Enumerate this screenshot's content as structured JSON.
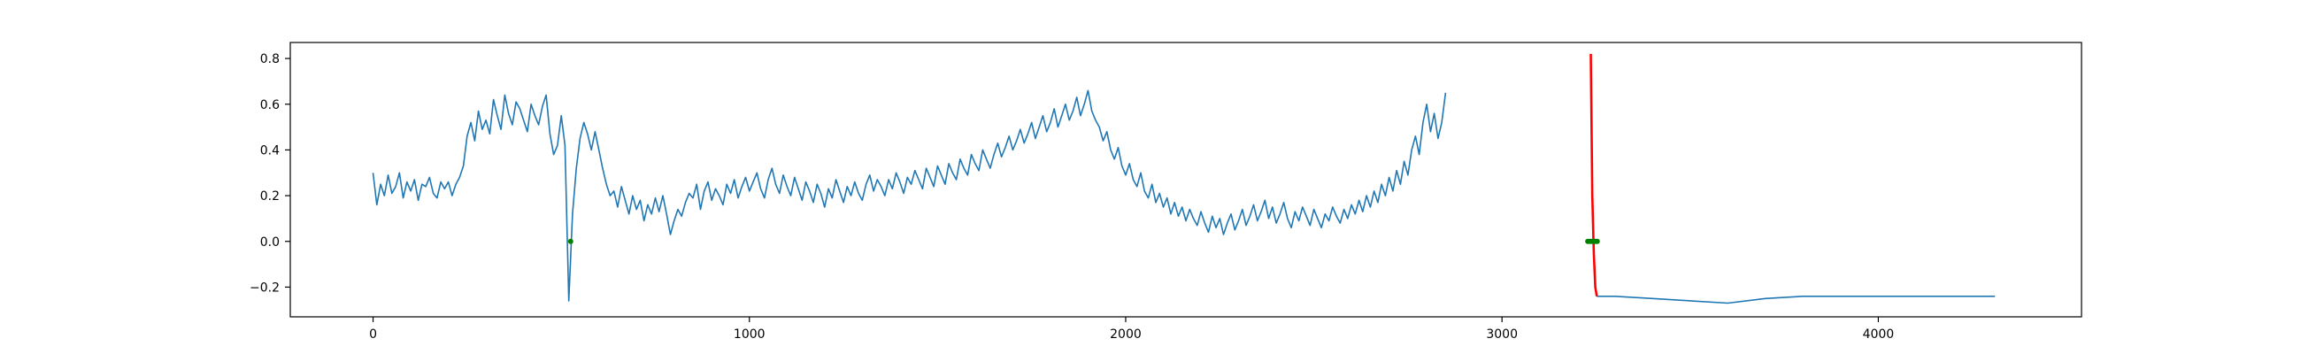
{
  "chart_data": {
    "type": "line",
    "title": "",
    "xlabel": "",
    "ylabel": "",
    "xlim": [
      -220,
      4540
    ],
    "ylim": [
      -0.33,
      0.87
    ],
    "x_ticks": [
      0,
      1000,
      2000,
      3000,
      4000
    ],
    "x_tick_labels": [
      "0",
      "1000",
      "2000",
      "3000",
      "4000"
    ],
    "y_ticks": [
      -0.2,
      0.0,
      0.2,
      0.4,
      0.6,
      0.8
    ],
    "y_tick_labels": [
      "−0.2",
      "0.0",
      "0.2",
      "0.4",
      "0.6",
      "0.8"
    ],
    "grid": false,
    "legend": "none",
    "series": [
      {
        "color": "#1f77b4",
        "sampling_step": 10,
        "x_start": 0,
        "values": [
          0.3,
          0.16,
          0.25,
          0.2,
          0.29,
          0.21,
          0.24,
          0.3,
          0.19,
          0.26,
          0.22,
          0.27,
          0.18,
          0.25,
          0.24,
          0.28,
          0.21,
          0.19,
          0.26,
          0.23,
          0.26,
          0.2,
          0.25,
          0.28,
          0.33,
          0.46,
          0.52,
          0.44,
          0.57,
          0.49,
          0.53,
          0.47,
          0.62,
          0.55,
          0.49,
          0.64,
          0.56,
          0.51,
          0.61,
          0.58,
          0.53,
          0.48,
          0.6,
          0.55,
          0.51,
          0.59,
          0.64,
          0.47,
          0.38,
          0.42,
          0.55,
          0.42,
          -0.26,
          0.12,
          0.32,
          0.45,
          0.52,
          0.47,
          0.4,
          0.48,
          0.4,
          0.32,
          0.25,
          0.2,
          0.22,
          0.15,
          0.24,
          0.18,
          0.12,
          0.2,
          0.14,
          0.18,
          0.09,
          0.16,
          0.12,
          0.19,
          0.13,
          0.2,
          0.12,
          0.03,
          0.09,
          0.14,
          0.11,
          0.17,
          0.21,
          0.19,
          0.25,
          0.14,
          0.22,
          0.26,
          0.18,
          0.23,
          0.2,
          0.16,
          0.25,
          0.21,
          0.27,
          0.19,
          0.24,
          0.28,
          0.22,
          0.26,
          0.3,
          0.23,
          0.19,
          0.27,
          0.32,
          0.25,
          0.21,
          0.29,
          0.24,
          0.2,
          0.28,
          0.23,
          0.18,
          0.26,
          0.22,
          0.17,
          0.25,
          0.21,
          0.15,
          0.23,
          0.19,
          0.27,
          0.22,
          0.17,
          0.24,
          0.2,
          0.26,
          0.21,
          0.18,
          0.25,
          0.29,
          0.22,
          0.27,
          0.24,
          0.2,
          0.27,
          0.23,
          0.3,
          0.26,
          0.21,
          0.28,
          0.25,
          0.31,
          0.27,
          0.23,
          0.32,
          0.28,
          0.24,
          0.33,
          0.29,
          0.25,
          0.34,
          0.3,
          0.27,
          0.36,
          0.32,
          0.29,
          0.38,
          0.34,
          0.31,
          0.4,
          0.36,
          0.32,
          0.38,
          0.43,
          0.37,
          0.41,
          0.46,
          0.4,
          0.44,
          0.49,
          0.43,
          0.47,
          0.52,
          0.45,
          0.5,
          0.55,
          0.48,
          0.52,
          0.58,
          0.5,
          0.55,
          0.6,
          0.53,
          0.57,
          0.63,
          0.55,
          0.6,
          0.66,
          0.57,
          0.53,
          0.5,
          0.44,
          0.48,
          0.4,
          0.36,
          0.41,
          0.33,
          0.29,
          0.34,
          0.27,
          0.24,
          0.3,
          0.22,
          0.19,
          0.25,
          0.17,
          0.21,
          0.15,
          0.19,
          0.12,
          0.17,
          0.11,
          0.15,
          0.09,
          0.14,
          0.1,
          0.07,
          0.13,
          0.08,
          0.04,
          0.11,
          0.06,
          0.1,
          0.03,
          0.08,
          0.12,
          0.05,
          0.09,
          0.14,
          0.07,
          0.11,
          0.16,
          0.09,
          0.13,
          0.18,
          0.1,
          0.15,
          0.08,
          0.12,
          0.17,
          0.1,
          0.06,
          0.13,
          0.09,
          0.15,
          0.11,
          0.07,
          0.14,
          0.1,
          0.06,
          0.12,
          0.09,
          0.15,
          0.11,
          0.08,
          0.14,
          0.1,
          0.16,
          0.12,
          0.18,
          0.13,
          0.2,
          0.15,
          0.22,
          0.17,
          0.25,
          0.2,
          0.28,
          0.22,
          0.31,
          0.25,
          0.35,
          0.29,
          0.4,
          0.46,
          0.38,
          0.52,
          0.6,
          0.48,
          0.56,
          0.45,
          0.52,
          0.65
        ]
      },
      {
        "color": "#1f77b4",
        "x": [
          3252,
          3300,
          3400,
          3500,
          3600,
          3700,
          3800,
          3900,
          4000,
          4100,
          4200,
          4310
        ],
        "values": [
          -0.24,
          -0.24,
          -0.25,
          -0.26,
          -0.27,
          -0.25,
          -0.24,
          -0.24,
          -0.24,
          -0.24,
          -0.24,
          -0.24
        ]
      },
      {
        "color": "#ff0000",
        "x": [
          3236,
          3240,
          3244,
          3248,
          3252
        ],
        "values": [
          0.82,
          0.2,
          -0.05,
          -0.2,
          -0.24
        ]
      },
      {
        "color": "#008000",
        "marker": "dot",
        "x": [
          525,
          3228,
          3233,
          3238,
          3243,
          3248,
          3253
        ],
        "values": [
          0.0,
          0.0,
          0.0,
          0.0,
          0.0,
          0.0,
          0.0
        ]
      }
    ]
  }
}
